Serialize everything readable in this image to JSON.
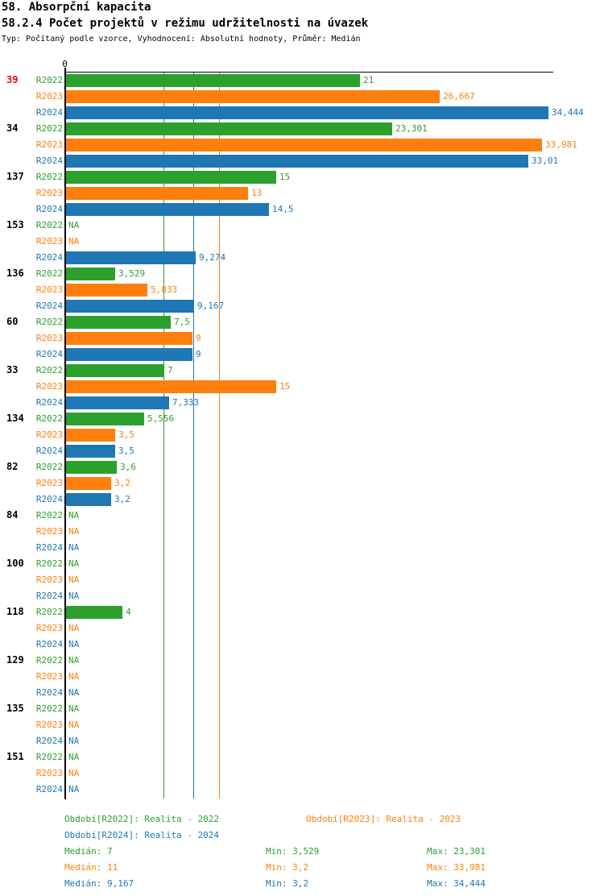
{
  "header": {
    "title": "58. Absorpční kapacita",
    "subtitle": "58.2.4 Počet projektů v režimu udržitelnosti na úvazek",
    "meta": "Typ: Počítaný podle vzorce, Vyhodnocení: Absolutní hodnoty, Průměr: Medián"
  },
  "colors": {
    "R2022": "#2ca02c",
    "R2023": "#ff7f0e",
    "R2024": "#1f77b4",
    "highlight_label": "#ff0000",
    "label": "#000000",
    "axis": "#000000"
  },
  "chart_data": {
    "type": "bar",
    "orientation": "horizontal",
    "x_axis": {
      "zero_label": "0",
      "min": 0,
      "max": 34.8,
      "grid": false
    },
    "series": [
      "R2022",
      "R2023",
      "R2024"
    ],
    "na_label": "NA",
    "median_lines": [
      {
        "series": "R2022",
        "value": 7
      },
      {
        "series": "R2024",
        "value": 9.167
      },
      {
        "series": "R2023",
        "value": 11
      }
    ],
    "groups": [
      {
        "label": "39",
        "highlighted": true,
        "values": [
          "21",
          "26,667",
          "34,444"
        ]
      },
      {
        "label": "34",
        "highlighted": false,
        "values": [
          "23,301",
          "33,981",
          "33,01"
        ]
      },
      {
        "label": "137",
        "highlighted": false,
        "values": [
          "15",
          "13",
          "14,5"
        ]
      },
      {
        "label": "153",
        "highlighted": false,
        "values": [
          "NA",
          "NA",
          "9,274"
        ]
      },
      {
        "label": "136",
        "highlighted": false,
        "values": [
          "3,529",
          "5,833",
          "9,167"
        ]
      },
      {
        "label": "60",
        "highlighted": false,
        "values": [
          "7,5",
          "9",
          "9"
        ]
      },
      {
        "label": "33",
        "highlighted": false,
        "values": [
          "7",
          "15",
          "7,333"
        ]
      },
      {
        "label": "134",
        "highlighted": false,
        "values": [
          "5,556",
          "3,5",
          "3,5"
        ]
      },
      {
        "label": "82",
        "highlighted": false,
        "values": [
          "3,6",
          "3,2",
          "3,2"
        ]
      },
      {
        "label": "84",
        "highlighted": false,
        "values": [
          "NA",
          "NA",
          "NA"
        ]
      },
      {
        "label": "100",
        "highlighted": false,
        "values": [
          "NA",
          "NA",
          "NA"
        ]
      },
      {
        "label": "118",
        "highlighted": false,
        "values": [
          "4",
          "NA",
          "NA"
        ]
      },
      {
        "label": "129",
        "highlighted": false,
        "values": [
          "NA",
          "NA",
          "NA"
        ]
      },
      {
        "label": "135",
        "highlighted": false,
        "values": [
          "NA",
          "NA",
          "NA"
        ]
      },
      {
        "label": "151",
        "highlighted": false,
        "values": [
          "NA",
          "NA",
          "NA"
        ]
      }
    ]
  },
  "legend": {
    "entries": [
      {
        "series": "R2022",
        "label": "Období[R2022]: Realita - 2022"
      },
      {
        "series": "R2023",
        "label": "Období[R2023]: Realita - 2023"
      },
      {
        "series": "R2024",
        "label": "Období[R2024]: Realita - 2024"
      }
    ]
  },
  "stats": {
    "rows": [
      {
        "series": "R2022",
        "median": "Medián: 7",
        "min": "Min: 3,529",
        "max": "Max: 23,301"
      },
      {
        "series": "R2023",
        "median": "Medián: 11",
        "min": "Min: 3,2",
        "max": "Max: 33,981"
      },
      {
        "series": "R2024",
        "median": "Medián: 9,167",
        "min": "Min: 3,2",
        "max": "Max: 34,444"
      }
    ]
  }
}
